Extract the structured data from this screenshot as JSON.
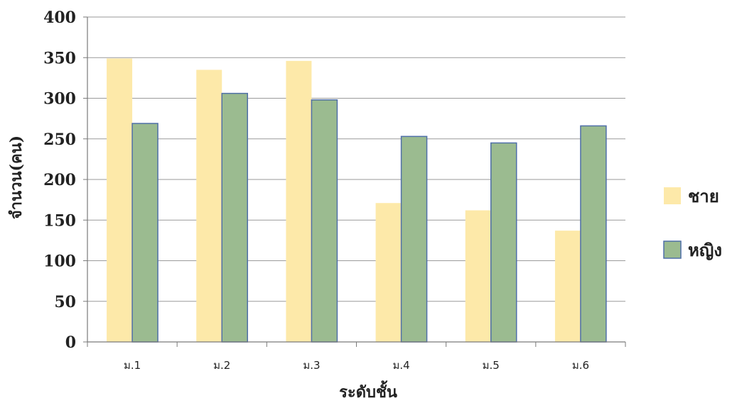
{
  "chart_data": {
    "type": "bar",
    "title": "",
    "xlabel": "ระดับชั้น",
    "ylabel": "จำนวน(คน)",
    "categories": [
      "ม.1",
      "ม.2",
      "ม.3",
      "ม.4",
      "ม.5",
      "ม.6"
    ],
    "ylim": [
      0,
      400
    ],
    "yticks": [
      0,
      50,
      100,
      150,
      200,
      250,
      300,
      350,
      400
    ],
    "grid": true,
    "legend_position": "right",
    "series": [
      {
        "name": "ชาย",
        "values": [
          349,
          335,
          346,
          171,
          162,
          137
        ],
        "color": "#fde9a9"
      },
      {
        "name": "หญิง",
        "values": [
          269,
          306,
          298,
          253,
          245,
          266
        ],
        "color": "#9bbb90",
        "stroke": "#4f6fa8"
      }
    ]
  }
}
